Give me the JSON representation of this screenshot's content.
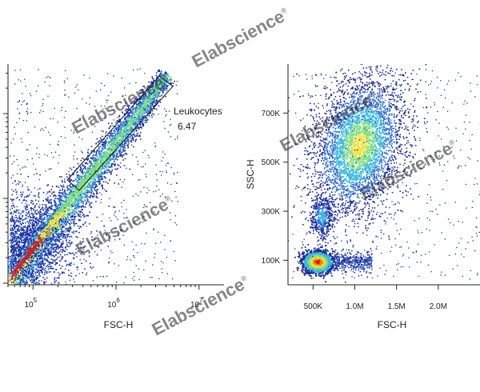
{
  "watermark": "Elabscience",
  "watermark_mark": "®",
  "chart_data": [
    {
      "type": "scatter",
      "subtype": "flow-cytometry-density-dot-plot",
      "xlabel": "FSC-H",
      "ylabel": "",
      "x_scale": "log",
      "xlim": [
        50000,
        20000000
      ],
      "x_ticks": [
        {
          "value": 100000,
          "base": "10",
          "exp": "5"
        },
        {
          "value": 1000000,
          "base": "10",
          "exp": "6"
        },
        {
          "value": 10000000,
          "base": "10",
          "exp": "7"
        }
      ],
      "y_scale": "log",
      "ylim": [
        0,
        1
      ],
      "y_ticks": [],
      "gate": {
        "shape": "polygon",
        "label": "Leukocytes",
        "value": "6.47"
      },
      "density_colors": [
        "#1a2a9c",
        "#2f6fd8",
        "#38b8e0",
        "#7fe07a",
        "#f2e03a",
        "#f08a1e",
        "#d8201e"
      ]
    },
    {
      "type": "scatter",
      "subtype": "flow-cytometry-density-dot-plot",
      "xlabel": "FSC-H",
      "ylabel": "SSC-H",
      "x_scale": "linear",
      "xlim": [
        200000,
        2500000
      ],
      "x_ticks": [
        {
          "value": 500000,
          "label": "500K"
        },
        {
          "value": 1000000,
          "label": "1.0M"
        },
        {
          "value": 1500000,
          "label": "1.5M"
        },
        {
          "value": 2000000,
          "label": "2.0M"
        }
      ],
      "y_scale": "linear",
      "ylim": [
        0,
        900000
      ],
      "y_ticks": [
        {
          "value": 100000,
          "label": "100K"
        },
        {
          "value": 300000,
          "label": "300K"
        },
        {
          "value": 500000,
          "label": "500K"
        },
        {
          "value": 700000,
          "label": "700K"
        }
      ],
      "populations": [
        {
          "center_x": 550000,
          "center_y": 95000,
          "density": "very high"
        },
        {
          "center_x": 600000,
          "center_y": 280000,
          "density": "low"
        },
        {
          "center_x": 1050000,
          "center_y": 570000,
          "density": "medium"
        }
      ],
      "density_colors": [
        "#1a2a9c",
        "#2f6fd8",
        "#38b8e0",
        "#7fe07a",
        "#f2e03a",
        "#f08a1e",
        "#d8201e"
      ]
    }
  ]
}
